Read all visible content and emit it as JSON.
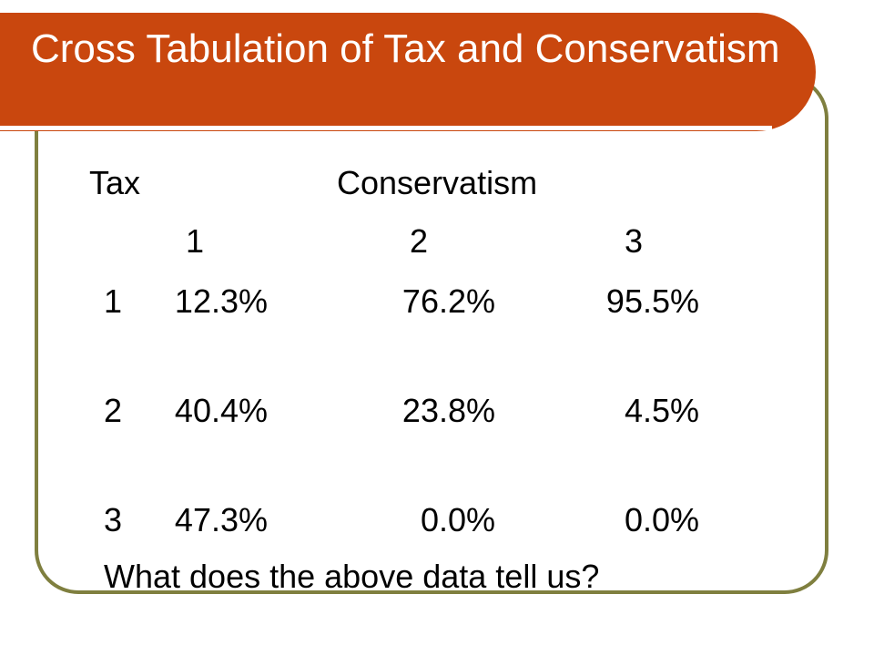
{
  "slide": {
    "title": "Cross Tabulation of Tax and Conservatism",
    "row_var_label": "Tax",
    "col_var_label": "Conservatism",
    "column_headers": [
      "1",
      "2",
      "3"
    ],
    "rows": [
      {
        "label": "1",
        "values": [
          "12.3%",
          "76.2%",
          "95.5%"
        ]
      },
      {
        "label": "2",
        "values": [
          "40.4%",
          "23.8%",
          "4.5%"
        ]
      },
      {
        "label": "3",
        "values": [
          "47.3%",
          "0.0%",
          "0.0%"
        ]
      }
    ],
    "question": "What does the above data tell us?"
  },
  "colors": {
    "title_bar": "#c9470e",
    "title_text": "#ffffff",
    "frame_border": "#7f7f3f",
    "body_text": "#000000"
  }
}
